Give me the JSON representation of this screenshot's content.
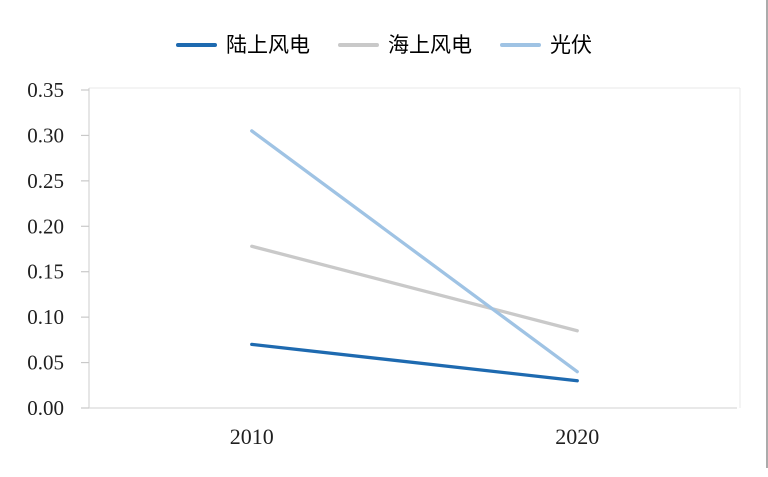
{
  "figure": {
    "background": "#ffffff",
    "axis_color": "#d9d9d9",
    "tick_color": "#c9c9c9",
    "plot_border_color": "#e9e9e9",
    "label_color": "#1f1f1f",
    "legend_text_color": "#000000"
  },
  "chart_data": {
    "type": "line",
    "title": "",
    "categories": [
      "2010",
      "2020"
    ],
    "series": [
      {
        "name": "陆上风电",
        "color": "#1e6ab0",
        "values": [
          0.07,
          0.03
        ]
      },
      {
        "name": "海上风电",
        "color": "#c9c9c9",
        "values": [
          0.178,
          0.085
        ]
      },
      {
        "name": "光伏",
        "color": "#9fc3e4",
        "values": [
          0.305,
          0.04
        ]
      }
    ],
    "xlabel": "",
    "ylabel": "",
    "ylim": [
      0,
      0.35
    ],
    "y_tick_labels": [
      "0.00",
      "0.05",
      "0.10",
      "0.15",
      "0.20",
      "0.25",
      "0.30",
      "0.35"
    ],
    "grid": false,
    "legend_position": "top"
  }
}
